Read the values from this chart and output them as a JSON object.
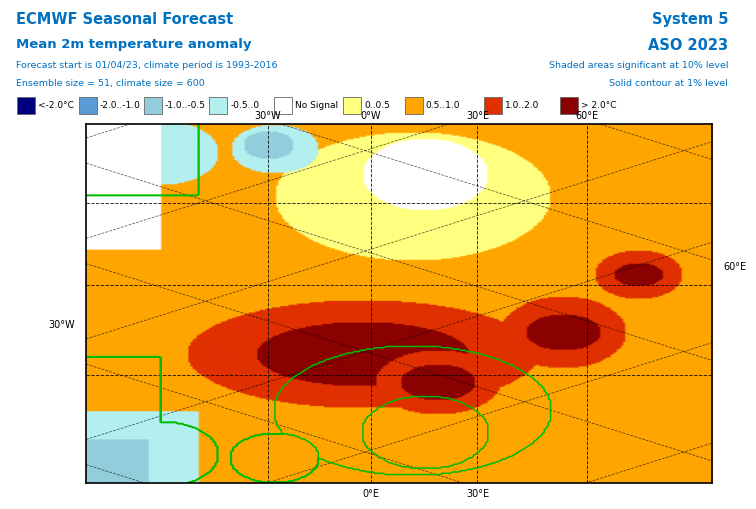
{
  "title_left_1": "ECMWF Seasonal Forecast",
  "title_left_2": "Mean 2m temperature anomaly",
  "subtitle_left_1": "Forecast start is 01/04/23, climate period is 1993-2016",
  "subtitle_left_2": "Ensemble size = 51, climate size = 600",
  "title_right_1": "System 5",
  "title_right_2": "ASO 2023",
  "subtitle_right_1": "Shaded areas significant at 10% level",
  "subtitle_right_2": "Solid contour at 1% level",
  "legend_labels": [
    "<-2.0°C",
    "-2.0..-1.0",
    "-1.0..-0.5",
    "-0.5..0",
    "No Signal",
    "0..0.5",
    "0.5..1.0",
    "1.0..2.0",
    "> 2.0°C"
  ],
  "legend_colors": [
    "#00007F",
    "#5B9BD5",
    "#92CDDC",
    "#B3EFEF",
    "#FFFFFF",
    "#FFFF80",
    "#FFA500",
    "#E03000",
    "#8B0000"
  ],
  "text_color_blue": "#0070C0",
  "cmap_colors": [
    "#00007F",
    "#5B9BD5",
    "#92CDDC",
    "#B3EFEF",
    "#FFFFFF",
    "#FFFF80",
    "#FFA500",
    "#E03000",
    "#8B0000"
  ],
  "top_labels": [
    [
      "30°W",
      0.29
    ],
    [
      "0°W",
      0.455
    ],
    [
      "30°E",
      0.625
    ],
    [
      "60°E",
      0.8
    ]
  ],
  "bot_labels": [
    [
      "0°E",
      0.455
    ],
    [
      "30°E",
      0.625
    ]
  ],
  "left_label": [
    "30°W",
    0.44
  ],
  "right_label": [
    "60°E",
    0.6
  ],
  "grid_vert": [
    0.29,
    0.455,
    0.625,
    0.8
  ],
  "grid_horiz": [
    0.3,
    0.55,
    0.78
  ],
  "green_contour_color": "#00BB00",
  "map_outer_color": "#FFFFFF"
}
